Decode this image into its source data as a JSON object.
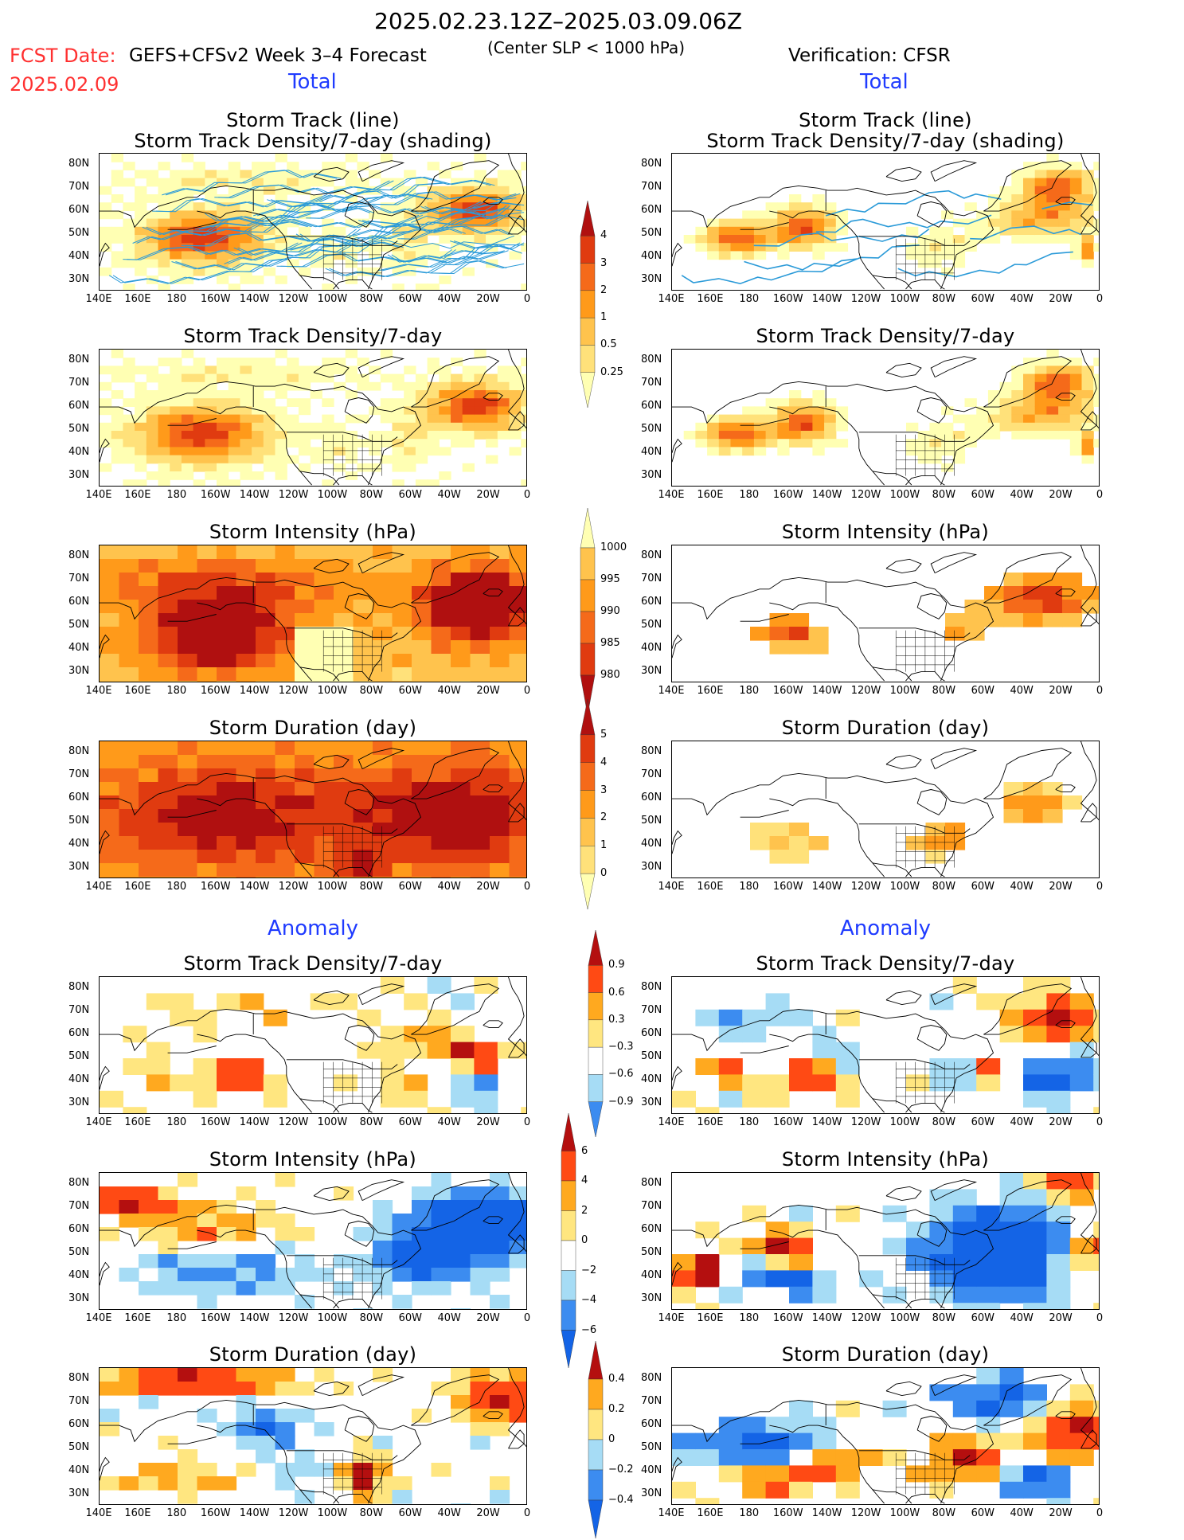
{
  "header": {
    "period": "2025.02.23.12Z–2025.03.09.06Z",
    "fcst_label": "FCST Date:",
    "fcst_date": "2025.02.09",
    "model": "GEFS+CFSv2 Week 3–4 Forecast",
    "criterion": "(Center SLP < 1000 hPa)",
    "verification": "Verification: CFSR"
  },
  "sections": {
    "total": "Total",
    "anomaly": "Anomaly"
  },
  "axes": {
    "lat_ticks": [
      "80N",
      "70N",
      "60N",
      "50N",
      "40N",
      "30N"
    ],
    "lon_ticks": [
      "140E",
      "160E",
      "180",
      "160W",
      "140W",
      "120W",
      "100W",
      "80W",
      "60W",
      "40W",
      "20W",
      "0"
    ]
  },
  "colors": {
    "total_scale": [
      "#ffffb3",
      "#ffe17a",
      "#ffc34d",
      "#ff9a1a",
      "#f56a1a",
      "#e03b10",
      "#b01010"
    ],
    "anom_scale": [
      "#1464e6",
      "#3c8cf0",
      "#a6dcf5",
      "#ffffff",
      "#ffe680",
      "#ffa91f",
      "#ff4a14",
      "#b40f0f"
    ],
    "track_line": "#2a9ad8"
  },
  "panels": [
    {
      "id": "fcst-track",
      "title_lines": [
        "Storm Track (line)",
        "Storm Track Density/7-day (shading)"
      ],
      "col": "forecast"
    },
    {
      "id": "obs-track",
      "title_lines": [
        "Storm Track (line)",
        "Storm Track Density/7-day (shading)"
      ],
      "col": "verification"
    },
    {
      "id": "fcst-density",
      "title_lines": [
        "Storm Track Density/7-day"
      ],
      "col": "forecast"
    },
    {
      "id": "obs-density",
      "title_lines": [
        "Storm Track Density/7-day"
      ],
      "col": "verification"
    },
    {
      "id": "fcst-intensity",
      "title_lines": [
        "Storm Intensity (hPa)"
      ],
      "col": "forecast"
    },
    {
      "id": "obs-intensity",
      "title_lines": [
        "Storm Intensity (hPa)"
      ],
      "col": "verification"
    },
    {
      "id": "fcst-duration",
      "title_lines": [
        "Storm Duration (day)"
      ],
      "col": "forecast"
    },
    {
      "id": "obs-duration",
      "title_lines": [
        "Storm Duration (day)"
      ],
      "col": "verification"
    },
    {
      "id": "fcst-density-anom",
      "title_lines": [
        "Storm Track Density/7-day"
      ],
      "col": "forecast"
    },
    {
      "id": "obs-density-anom",
      "title_lines": [
        "Storm Track Density/7-day"
      ],
      "col": "verification"
    },
    {
      "id": "fcst-intensity-anom",
      "title_lines": [
        "Storm Intensity (hPa)"
      ],
      "col": "forecast"
    },
    {
      "id": "obs-intensity-anom",
      "title_lines": [
        "Storm Intensity (hPa)"
      ],
      "col": "verification"
    },
    {
      "id": "fcst-duration-anom",
      "title_lines": [
        "Storm Duration (day)"
      ],
      "col": "forecast"
    },
    {
      "id": "obs-duration-anom",
      "title_lines": [
        "Storm Duration (day)"
      ],
      "col": "verification"
    }
  ],
  "colorbars": [
    {
      "id": "cb-density",
      "labels": [
        "4",
        "3",
        "2",
        "1",
        "0.5",
        "0.25"
      ]
    },
    {
      "id": "cb-intensity",
      "labels": [
        "1000",
        "995",
        "990",
        "985",
        "980"
      ]
    },
    {
      "id": "cb-duration",
      "labels": [
        "5",
        "4",
        "3",
        "2",
        "1",
        "0"
      ]
    },
    {
      "id": "cb-density-anom",
      "labels": [
        "0.9",
        "0.6",
        "0.3",
        "−0.3",
        "−0.6",
        "−0.9"
      ]
    },
    {
      "id": "cb-intensity-anom",
      "labels": [
        "6",
        "4",
        "2",
        "0",
        "−2",
        "−4",
        "−6"
      ]
    },
    {
      "id": "cb-duration-anom",
      "labels": [
        "0.4",
        "0.2",
        "0",
        "−0.2",
        "−0.4"
      ]
    }
  ],
  "chart_data": [
    {
      "type": "heatmap",
      "name": "fcst-track",
      "title": "Storm Track (line) / Storm Track Density/7-day (shading)",
      "maxima": [
        {
          "region": "North Pacific 160E–140W, 40–60N",
          "value": 4
        },
        {
          "region": "North Atlantic 50W–10W, 55–70N",
          "value": 4
        }
      ]
    },
    {
      "type": "heatmap",
      "name": "obs-track",
      "title": "Storm Track (line) / Storm Track Density/7-day (shading)",
      "maxima": [
        {
          "region": "North Pacific 150E–140W, 45–60N",
          "value": 4
        },
        {
          "region": "Greenland–Norwegian Sea",
          "value": 4
        }
      ]
    },
    {
      "type": "heatmap",
      "name": "fcst-density",
      "title": "Storm Track Density/7-day",
      "range": [
        0.25,
        4
      ]
    },
    {
      "type": "heatmap",
      "name": "obs-density",
      "title": "Storm Track Density/7-day",
      "range": [
        0.25,
        4
      ]
    },
    {
      "type": "heatmap",
      "name": "fcst-intensity",
      "title": "Storm Intensity (hPa)",
      "range": [
        980,
        1000
      ]
    },
    {
      "type": "heatmap",
      "name": "obs-intensity",
      "title": "Storm Intensity (hPa)",
      "range": [
        980,
        1000
      ]
    },
    {
      "type": "heatmap",
      "name": "fcst-duration",
      "title": "Storm Duration (day)",
      "range": [
        0,
        5
      ]
    },
    {
      "type": "heatmap",
      "name": "obs-duration",
      "title": "Storm Duration (day)",
      "range": [
        0,
        5
      ]
    },
    {
      "type": "heatmap",
      "name": "fcst-density-anom",
      "title": "Storm Track Density/7-day",
      "range": [
        -0.9,
        0.9
      ]
    },
    {
      "type": "heatmap",
      "name": "obs-density-anom",
      "title": "Storm Track Density/7-day",
      "range": [
        -0.9,
        0.9
      ]
    },
    {
      "type": "heatmap",
      "name": "fcst-intensity-anom",
      "title": "Storm Intensity (hPa)",
      "range": [
        -6,
        6
      ]
    },
    {
      "type": "heatmap",
      "name": "obs-intensity-anom",
      "title": "Storm Intensity (hPa)",
      "range": [
        -6,
        6
      ]
    },
    {
      "type": "heatmap",
      "name": "fcst-duration-anom",
      "title": "Storm Duration (day)",
      "range": [
        -0.4,
        0.4
      ]
    },
    {
      "type": "heatmap",
      "name": "obs-duration-anom",
      "title": "Storm Duration (day)",
      "range": [
        -0.4,
        0.4
      ]
    }
  ]
}
